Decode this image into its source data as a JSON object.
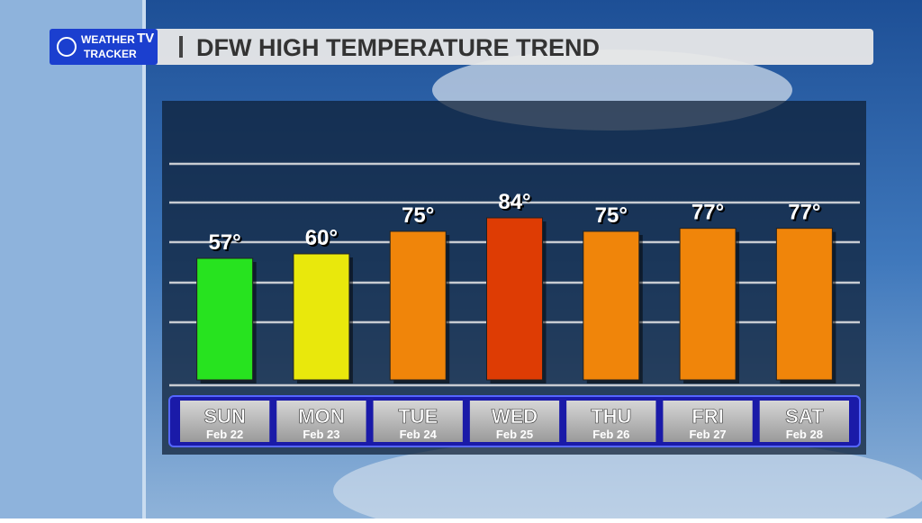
{
  "logo": {
    "line1": "WEATHER",
    "badge": "TV",
    "line2": "TRACKER"
  },
  "chart_data": {
    "type": "bar",
    "title": "DFW HIGH TEMPERATURE TREND",
    "categories": [
      "SUN",
      "MON",
      "TUE",
      "WED",
      "THU",
      "FRI",
      "SAT"
    ],
    "dates": [
      "Feb 22",
      "Feb 23",
      "Feb 24",
      "Feb 25",
      "Feb 26",
      "Feb 27",
      "Feb 28"
    ],
    "values": [
      57,
      60,
      75,
      84,
      75,
      77,
      77
    ],
    "value_labels": [
      "57°",
      "60°",
      "75°",
      "84°",
      "75°",
      "77°",
      "77°"
    ],
    "colors": [
      "#27e31f",
      "#e9e80c",
      "#f0850a",
      "#de3c04",
      "#f0850a",
      "#f0850a",
      "#f0850a"
    ],
    "ylim": [
      -24,
      120
    ]
  }
}
